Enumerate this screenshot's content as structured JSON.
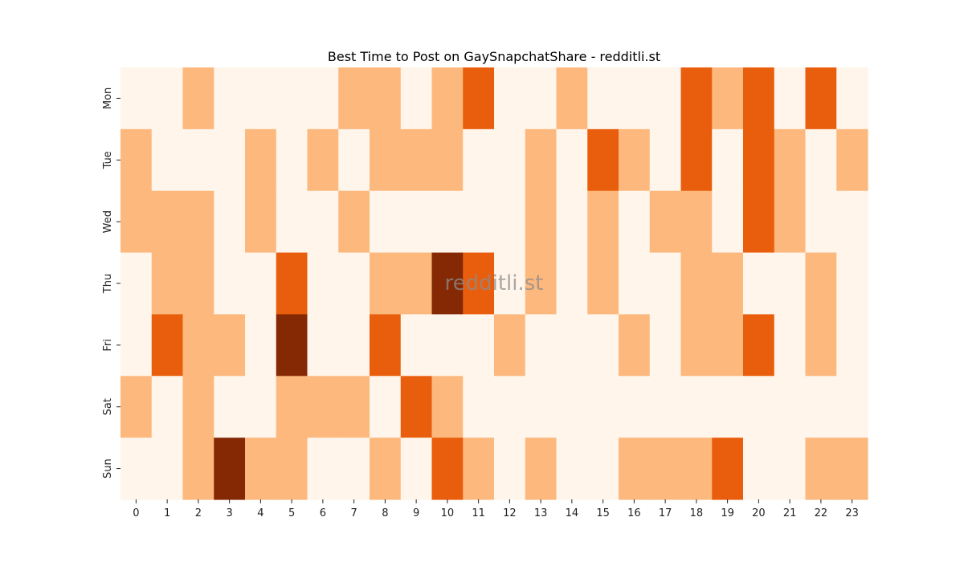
{
  "chart_data": {
    "type": "heatmap",
    "title": "Best Time to Post on GaySnapchatShare - redditli.st",
    "watermark": "redditli.st",
    "xlabel": "",
    "ylabel": "",
    "x_categories": [
      "0",
      "1",
      "2",
      "3",
      "4",
      "5",
      "6",
      "7",
      "8",
      "9",
      "10",
      "11",
      "12",
      "13",
      "14",
      "15",
      "16",
      "17",
      "18",
      "19",
      "20",
      "21",
      "22",
      "23"
    ],
    "y_categories": [
      "Mon",
      "Tue",
      "Wed",
      "Thu",
      "Fri",
      "Sat",
      "Sun"
    ],
    "values": [
      [
        0,
        0,
        1,
        0,
        0,
        0,
        0,
        1,
        1,
        0,
        1,
        2,
        0,
        0,
        1,
        0,
        0,
        0,
        2,
        1,
        2,
        0,
        2,
        0
      ],
      [
        1,
        0,
        0,
        0,
        1,
        0,
        1,
        0,
        1,
        1,
        1,
        0,
        0,
        1,
        0,
        2,
        1,
        0,
        2,
        0,
        2,
        1,
        0,
        1
      ],
      [
        1,
        1,
        1,
        0,
        1,
        0,
        0,
        1,
        0,
        0,
        0,
        0,
        0,
        1,
        0,
        1,
        0,
        1,
        1,
        0,
        2,
        1,
        0,
        0
      ],
      [
        0,
        1,
        1,
        0,
        0,
        2,
        0,
        0,
        1,
        1,
        3,
        2,
        0,
        1,
        0,
        1,
        0,
        0,
        1,
        1,
        0,
        0,
        1,
        0
      ],
      [
        0,
        2,
        1,
        1,
        0,
        3,
        0,
        0,
        2,
        0,
        0,
        0,
        1,
        0,
        0,
        0,
        1,
        0,
        1,
        1,
        2,
        0,
        1,
        0
      ],
      [
        1,
        0,
        1,
        0,
        0,
        1,
        1,
        1,
        0,
        2,
        1,
        0,
        0,
        0,
        0,
        0,
        0,
        0,
        0,
        0,
        0,
        0,
        0,
        0
      ],
      [
        0,
        0,
        1,
        3,
        1,
        1,
        0,
        0,
        1,
        0,
        2,
        1,
        0,
        1,
        0,
        0,
        1,
        1,
        1,
        2,
        0,
        0,
        1,
        1
      ]
    ],
    "colormap": {
      "name": "Oranges",
      "level_colors": [
        "#fff5eb",
        "#fdb87d",
        "#e95e0d",
        "#842904"
      ]
    },
    "colorbar": false,
    "grid": false
  }
}
